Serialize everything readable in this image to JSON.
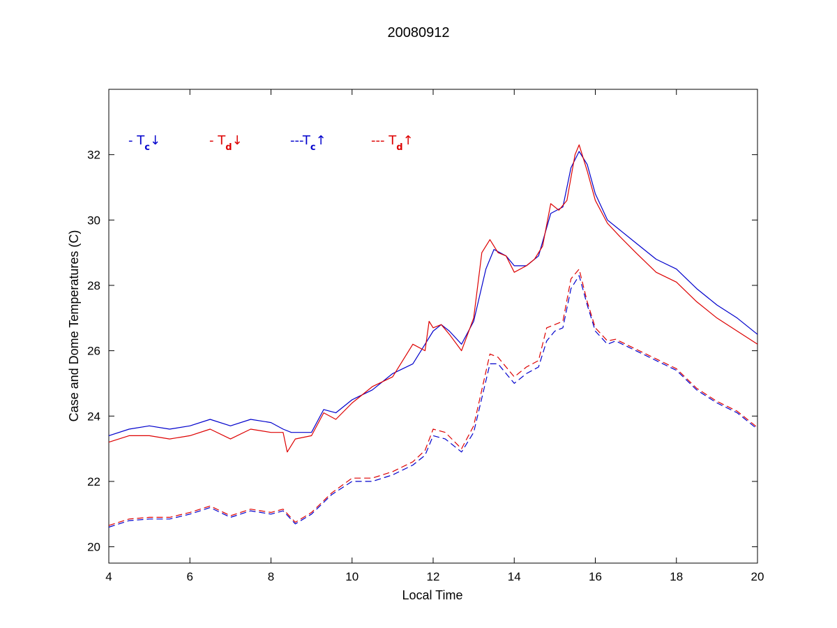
{
  "chart_data": {
    "type": "line",
    "title": "20080912",
    "xlabel": "Local Time",
    "ylabel": "Case and Dome Temperatures (C)",
    "xlim": [
      4,
      20
    ],
    "ylim": [
      19.5,
      34
    ],
    "xticks": [
      4,
      6,
      8,
      10,
      12,
      14,
      16,
      18,
      20
    ],
    "yticks": [
      20,
      22,
      24,
      26,
      28,
      30,
      32
    ],
    "grid": false,
    "legend_placement": "top-left",
    "series": [
      {
        "name": "- T",
        "subscript": "c",
        "arrow": "↓",
        "color": "#0000cc",
        "dash": "solid",
        "x": [
          4.0,
          4.5,
          5.0,
          5.5,
          6.0,
          6.5,
          7.0,
          7.5,
          8.0,
          8.3,
          8.5,
          9.0,
          9.3,
          9.6,
          10.0,
          10.5,
          11.0,
          11.5,
          11.8,
          12.0,
          12.2,
          12.4,
          12.7,
          13.0,
          13.3,
          13.5,
          13.8,
          14.0,
          14.3,
          14.6,
          14.9,
          15.2,
          15.4,
          15.6,
          15.8,
          16.0,
          16.3,
          16.6,
          17.0,
          17.5,
          18.0,
          18.5,
          19.0,
          19.5,
          20.0
        ],
        "values": [
          23.4,
          23.6,
          23.7,
          23.6,
          23.7,
          23.9,
          23.7,
          23.9,
          23.8,
          23.6,
          23.5,
          23.5,
          24.2,
          24.1,
          24.5,
          24.8,
          25.3,
          25.6,
          26.2,
          26.6,
          26.8,
          26.6,
          26.2,
          26.9,
          28.5,
          29.1,
          28.9,
          28.6,
          28.6,
          28.9,
          30.2,
          30.4,
          31.6,
          32.1,
          31.7,
          30.8,
          30.0,
          29.7,
          29.3,
          28.8,
          28.5,
          27.9,
          27.4,
          27.0,
          26.5
        ]
      },
      {
        "name": "- T",
        "subscript": "d",
        "arrow": "↓",
        "color": "#dd0000",
        "dash": "solid",
        "x": [
          4.0,
          4.5,
          5.0,
          5.5,
          6.0,
          6.5,
          7.0,
          7.5,
          8.0,
          8.3,
          8.4,
          8.6,
          9.0,
          9.3,
          9.6,
          10.0,
          10.5,
          11.0,
          11.5,
          11.8,
          11.9,
          12.0,
          12.2,
          12.4,
          12.7,
          13.0,
          13.2,
          13.4,
          13.6,
          13.8,
          14.0,
          14.3,
          14.5,
          14.7,
          14.9,
          15.1,
          15.3,
          15.5,
          15.6,
          15.8,
          16.0,
          16.3,
          16.6,
          17.0,
          17.5,
          18.0,
          18.5,
          19.0,
          19.5,
          20.0
        ],
        "values": [
          23.2,
          23.4,
          23.4,
          23.3,
          23.4,
          23.6,
          23.3,
          23.6,
          23.5,
          23.5,
          22.9,
          23.3,
          23.4,
          24.1,
          23.9,
          24.4,
          24.9,
          25.2,
          26.2,
          26.0,
          26.9,
          26.7,
          26.8,
          26.5,
          26.0,
          27.0,
          29.0,
          29.4,
          29.0,
          28.9,
          28.4,
          28.6,
          28.8,
          29.2,
          30.5,
          30.3,
          30.6,
          32.0,
          32.3,
          31.5,
          30.6,
          29.9,
          29.5,
          29.0,
          28.4,
          28.1,
          27.5,
          27.0,
          26.6,
          26.2
        ]
      },
      {
        "name": "---T",
        "subscript": "c",
        "arrow": "↑",
        "color": "#0000cc",
        "dash": "dashed",
        "x": [
          4.0,
          4.5,
          5.0,
          5.5,
          6.0,
          6.5,
          7.0,
          7.5,
          8.0,
          8.3,
          8.6,
          9.0,
          9.5,
          10.0,
          10.5,
          11.0,
          11.5,
          11.8,
          12.0,
          12.3,
          12.7,
          13.0,
          13.4,
          13.6,
          13.8,
          14.0,
          14.3,
          14.6,
          14.8,
          15.0,
          15.2,
          15.4,
          15.6,
          15.8,
          16.0,
          16.3,
          16.5,
          17.0,
          17.5,
          18.0,
          18.5,
          19.0,
          19.5,
          20.0
        ],
        "values": [
          20.6,
          20.8,
          20.85,
          20.85,
          21.0,
          21.2,
          20.9,
          21.1,
          21.0,
          21.1,
          20.7,
          21.0,
          21.6,
          22.0,
          22.0,
          22.2,
          22.5,
          22.8,
          23.4,
          23.3,
          22.9,
          23.5,
          25.6,
          25.6,
          25.3,
          25.0,
          25.3,
          25.5,
          26.3,
          26.6,
          26.7,
          27.9,
          28.3,
          27.4,
          26.6,
          26.2,
          26.3,
          26.0,
          25.7,
          25.4,
          24.8,
          24.4,
          24.1,
          23.6
        ]
      },
      {
        "name": "--- T",
        "subscript": "d",
        "arrow": "↑",
        "color": "#dd0000",
        "dash": "dashed",
        "x": [
          4.0,
          4.5,
          5.0,
          5.5,
          6.0,
          6.5,
          7.0,
          7.5,
          8.0,
          8.3,
          8.6,
          9.0,
          9.5,
          10.0,
          10.5,
          11.0,
          11.5,
          11.8,
          12.0,
          12.3,
          12.7,
          13.0,
          13.4,
          13.6,
          13.8,
          14.0,
          14.3,
          14.6,
          14.8,
          15.0,
          15.2,
          15.4,
          15.6,
          15.8,
          16.0,
          16.3,
          16.5,
          17.0,
          17.5,
          18.0,
          18.5,
          19.0,
          19.5,
          20.0
        ],
        "values": [
          20.65,
          20.85,
          20.9,
          20.9,
          21.05,
          21.25,
          20.95,
          21.15,
          21.05,
          21.15,
          20.75,
          21.05,
          21.65,
          22.1,
          22.1,
          22.3,
          22.6,
          22.95,
          23.6,
          23.5,
          23.0,
          23.7,
          25.9,
          25.8,
          25.5,
          25.2,
          25.5,
          25.7,
          26.7,
          26.8,
          26.9,
          28.2,
          28.5,
          27.5,
          26.7,
          26.3,
          26.35,
          26.05,
          25.75,
          25.45,
          24.85,
          24.45,
          24.15,
          23.65
        ]
      }
    ]
  }
}
